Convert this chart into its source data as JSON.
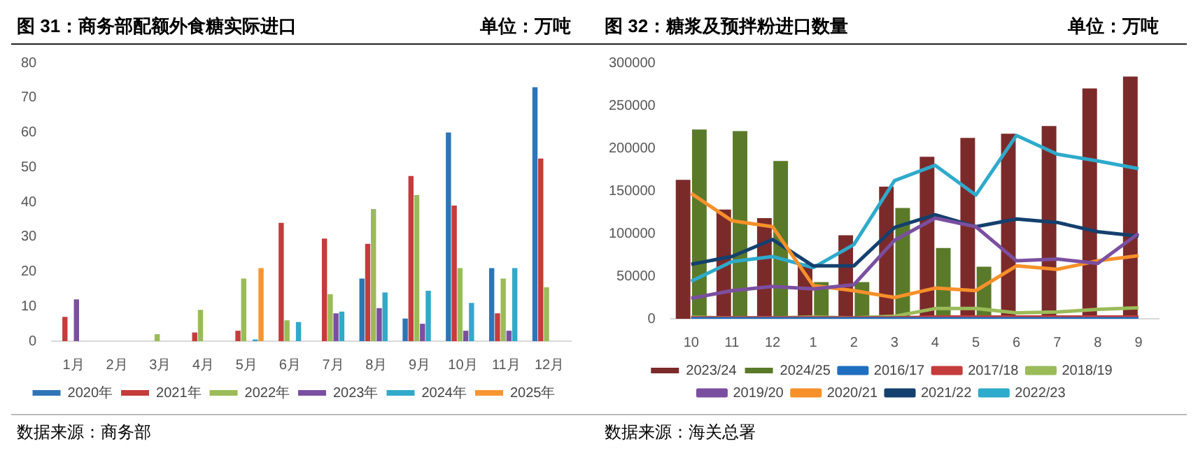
{
  "chart_data": [
    {
      "type": "bar",
      "title": "图 31：商务部配额外食糖实际进口",
      "subtitle": "单位：万吨",
      "categories": [
        "1月",
        "2月",
        "3月",
        "4月",
        "5月",
        "6月",
        "7月",
        "8月",
        "9月",
        "10月",
        "11月",
        "12月"
      ],
      "ylim": [
        0,
        80
      ],
      "yticks": [
        0,
        10,
        20,
        30,
        40,
        50,
        60,
        70,
        80
      ],
      "legend": "bottom",
      "annotations": [
        "数据来源：商务部"
      ],
      "series": [
        {
          "name": "2020年",
          "color": "#2e75b6",
          "values": [
            null,
            null,
            null,
            null,
            null,
            null,
            null,
            18,
            6.5,
            60,
            21,
            73
          ]
        },
        {
          "name": "2021年",
          "color": "#c43c3c",
          "values": [
            7,
            null,
            null,
            2.5,
            3,
            34,
            29.5,
            28,
            47.5,
            39,
            8,
            52.5
          ]
        },
        {
          "name": "2022年",
          "color": "#9bbb59",
          "values": [
            null,
            null,
            2,
            9,
            18,
            6,
            13.5,
            38,
            42,
            21,
            18,
            15.5
          ]
        },
        {
          "name": "2023年",
          "color": "#7b4fa0",
          "values": [
            12,
            null,
            null,
            null,
            null,
            null,
            8,
            9.5,
            5,
            3,
            3,
            null
          ]
        },
        {
          "name": "2024年",
          "color": "#31a9c9",
          "values": [
            null,
            null,
            null,
            null,
            0.5,
            5.5,
            8.5,
            14,
            14.5,
            11,
            21,
            null
          ]
        },
        {
          "name": "2025年",
          "color": "#f79533",
          "values": [
            null,
            null,
            null,
            null,
            21,
            null,
            null,
            null,
            null,
            null,
            null,
            null
          ]
        }
      ]
    },
    {
      "type": "bar",
      "title": "图 32：糖浆及预拌粉进口数量",
      "subtitle": "单位：万吨",
      "categories": [
        "10",
        "11",
        "12",
        "1",
        "2",
        "3",
        "4",
        "5",
        "6",
        "7",
        "8",
        "9"
      ],
      "ylim": [
        0,
        300000
      ],
      "yticks": [
        0,
        50000,
        100000,
        150000,
        200000,
        250000,
        300000
      ],
      "legend": "bottom",
      "annotations": [
        "数据来源：海关总署"
      ],
      "series": [
        {
          "name": "2023/24",
          "color": "#7b2a2a",
          "values": [
            163000,
            128000,
            118000,
            65000,
            98000,
            155000,
            190000,
            212000,
            217000,
            226000,
            270000,
            284000
          ]
        },
        {
          "name": "2024/25",
          "color": "#5a7a2a",
          "values": [
            222000,
            220000,
            185000,
            43000,
            43000,
            130000,
            83000,
            61000,
            null,
            null,
            null,
            null
          ]
        },
        {
          "name": "2016/17",
          "type": "line",
          "color": "#1f6fc0",
          "values": [
            0,
            0,
            0,
            0,
            0,
            0,
            0,
            0,
            0,
            0,
            0,
            0
          ]
        },
        {
          "name": "2017/18",
          "type": "line",
          "color": "#c43c3c",
          "values": [
            1000,
            1000,
            1000,
            1000,
            1000,
            1000,
            2000,
            2000,
            2000,
            2000,
            2000,
            2000
          ]
        },
        {
          "name": "2018/19",
          "type": "line",
          "color": "#9bbb59",
          "values": [
            2000,
            1000,
            1000,
            2000,
            1000,
            3000,
            12000,
            12000,
            7000,
            8000,
            11000,
            13000
          ]
        },
        {
          "name": "2019/20",
          "type": "line",
          "color": "#7b4fa0",
          "values": [
            24000,
            33000,
            38000,
            35000,
            40000,
            92000,
            118000,
            108000,
            68000,
            70000,
            65000,
            100000
          ]
        },
        {
          "name": "2020/21",
          "type": "line",
          "color": "#f7902a",
          "values": [
            147000,
            115000,
            108000,
            39000,
            33000,
            25000,
            36000,
            33000,
            62000,
            58000,
            68000,
            74000
          ]
        },
        {
          "name": "2021/22",
          "type": "line",
          "color": "#14406e",
          "values": [
            64000,
            73000,
            93000,
            62000,
            62000,
            107000,
            122000,
            108000,
            117000,
            113000,
            102000,
            97000
          ]
        },
        {
          "name": "2022/23",
          "type": "line",
          "color": "#2eaacb",
          "values": [
            44000,
            67000,
            73000,
            60000,
            87000,
            162000,
            180000,
            145000,
            215000,
            193000,
            185000,
            176000
          ]
        }
      ]
    }
  ]
}
